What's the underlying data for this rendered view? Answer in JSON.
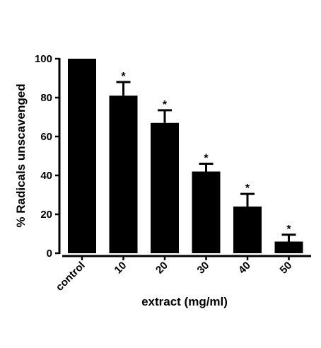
{
  "chart_data": {
    "type": "bar",
    "title": "",
    "xlabel": "extract (mg/ml)",
    "ylabel": "% Radicals unscavenged",
    "categories": [
      "control",
      "10",
      "20",
      "30",
      "40",
      "50"
    ],
    "values": [
      100,
      81,
      67,
      42,
      24,
      6
    ],
    "errors": [
      0,
      7,
      6.5,
      4,
      6.5,
      3.5
    ],
    "significance": [
      "",
      "*",
      "*",
      "*",
      "*",
      "*"
    ],
    "ylim": [
      0,
      100
    ],
    "yticks": [
      "0",
      "20",
      "40",
      "60",
      "80",
      "100"
    ],
    "grid": false,
    "legend": "none",
    "bar_color": "#000000",
    "background_color": "#ffffff"
  }
}
